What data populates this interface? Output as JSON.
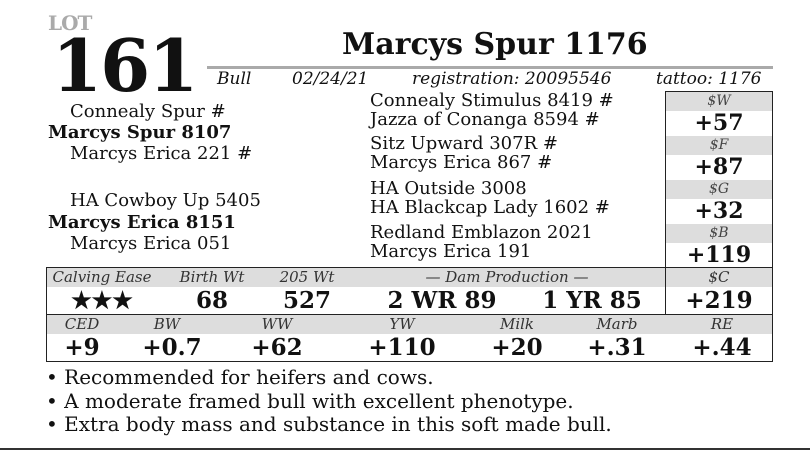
{
  "lot": {
    "label": "LOT",
    "number": "161",
    "name": "Marcys Spur 1176",
    "type": "Bull",
    "dob": "02/24/21",
    "registration": "registration: 20095546",
    "tattoo": "tattoo: 1176"
  },
  "pedigree": {
    "sire_sire": "Connealy Spur #",
    "sire": "Marcys Spur 8107",
    "sire_dam": "Marcys Erica 221  #",
    "dam_sire": "HA Cowboy Up 5405",
    "dam": "Marcys Erica 8151",
    "dam_dam": "Marcys Erica 051",
    "g": [
      "Connealy Stimulus 8419 #",
      "Jazza of Conanga 8594 #",
      "Sitz Upward 307R #",
      "Marcys Erica 867 #",
      "HA Outside 3008",
      "HA Blackcap Lady 1602 #",
      "Redland Emblazon 2021",
      "Marcys Erica 191"
    ]
  },
  "indexes": [
    {
      "label": "$W",
      "value": "+57"
    },
    {
      "label": "$F",
      "value": "+87"
    },
    {
      "label": "$G",
      "value": "+32"
    },
    {
      "label": "$B",
      "value": "+119"
    },
    {
      "label": "$C",
      "value": "+219"
    }
  ],
  "performance": {
    "headers": [
      "Calving Ease",
      "Birth Wt",
      "205 Wt",
      "— Dam Production —"
    ],
    "calving_ease": "★★★",
    "birth_wt": "68",
    "wt205": "527",
    "dam1": "2 WR 89",
    "dam2": "1 YR 85"
  },
  "epds": [
    {
      "label": "CED",
      "value": "+9"
    },
    {
      "label": "BW",
      "value": "+0.7"
    },
    {
      "label": "WW",
      "value": "+62"
    },
    {
      "label": "YW",
      "value": "+110"
    },
    {
      "label": "Milk",
      "value": "+20"
    },
    {
      "label": "Marb",
      "value": "+.31"
    },
    {
      "label": "RE",
      "value": "+.44"
    }
  ],
  "notes": [
    "• Recommended for heifers and cows.",
    "• A moderate framed bull with excellent phenotype.",
    "• Extra body mass and substance in this soft made bull."
  ]
}
